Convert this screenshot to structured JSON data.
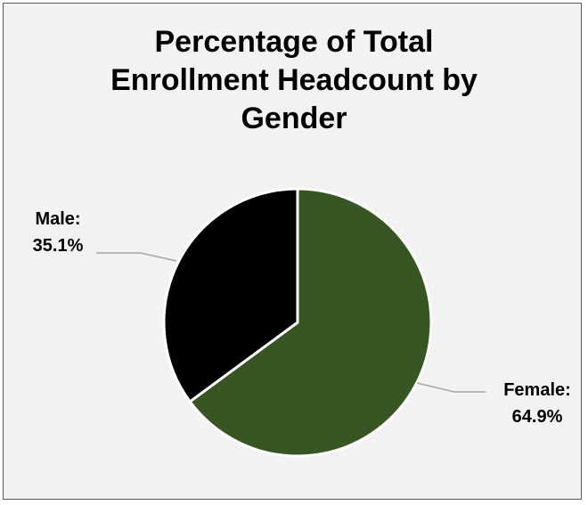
{
  "chart_data": {
    "type": "pie",
    "title_lines": [
      "Percentage of Total",
      "Enrollment Headcount by",
      "Gender"
    ],
    "slices": [
      {
        "label": "Female:",
        "value_text": "64.9%",
        "value": 64.9,
        "color": "#375623"
      },
      {
        "label": "Male:",
        "value_text": "35.1%",
        "value": 35.1,
        "color": "#000000"
      }
    ],
    "start_angle_deg": 0,
    "direction": "clockwise",
    "legend": "none",
    "leader_line_color": "#a6a6a6",
    "slice_border_color": "#ffffff",
    "background_color": "#f2f2f2"
  }
}
